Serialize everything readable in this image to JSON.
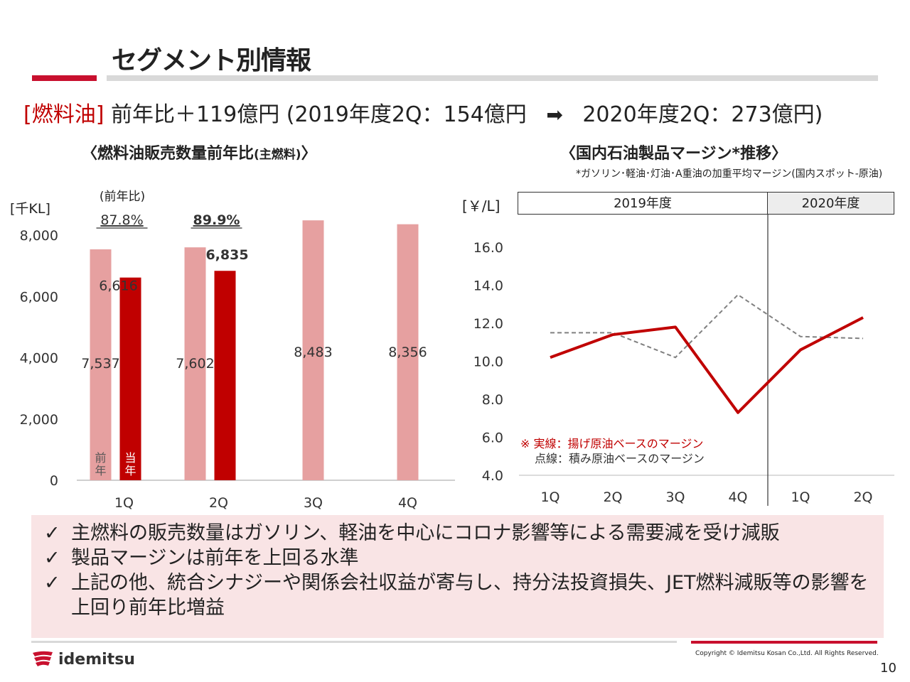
{
  "page_title": "セグメント別情報",
  "headline": {
    "segment": "[燃料油]",
    "text_before_arrow": "前年比＋119億円 (2019年度2Q：154億円",
    "arrow_symbol": "➡",
    "text_after_arrow": "2020年度2Q：273億円)"
  },
  "left_chart": {
    "title_main": "〈燃料油販売数量前年比",
    "title_small": "(主燃料)",
    "title_end": "〉"
  },
  "right_chart": {
    "title": "〈国内石油製品マージン*推移〉",
    "note": "*ガソリン･軽油･灯油･A重油の加重平均マージン(国内スポット-原油)",
    "period_2019": "2019年度",
    "period_2020": "2020年度"
  },
  "checks": [
    "主燃料の販売数量はガソリン、軽油を中心にコロナ影響等による需要減を受け減販",
    "製品マージンは前年を上回る水準",
    "上記の他、統合シナジーや関係会社収益が寄与し、持分法投資損失、JET燃料減販等の影響を上回り前年比増益"
  ],
  "check_symbol": "✓",
  "footer": {
    "logo_text": "idemitsu",
    "copyright": "Copyright © Idemitsu Kosan Co.,Ltd.  All Rights Reserved.",
    "page_number": "10"
  },
  "colors": {
    "accent_red": "#c00000",
    "prev_year_bar": "#e6a0a0",
    "curr_year_bar": "#c00000",
    "dashed_line": "#808080",
    "check_box_bg": "#f9e4e5"
  },
  "chart_data": [
    {
      "type": "bar",
      "ylabel": "[千KL]",
      "ylim": [
        0,
        8000
      ],
      "yticks": [
        0,
        2000,
        4000,
        6000,
        8000
      ],
      "ytick_labels": [
        "0",
        "2,000",
        "4,000",
        "6,000",
        "8,000"
      ],
      "categories": [
        "1Q",
        "2Q",
        "3Q",
        "4Q"
      ],
      "yoy_label": "(前年比)",
      "yoy_values": [
        "87.8%",
        "89.9%",
        null,
        null
      ],
      "series": [
        {
          "name": "前年",
          "values": [
            7537,
            7602,
            8483,
            8356
          ],
          "labels": [
            "7,537",
            "7,602",
            "8,483",
            "8,356"
          ]
        },
        {
          "name": "当年",
          "values": [
            6616,
            6835,
            null,
            null
          ],
          "labels": [
            "6,616",
            "6,835",
            null,
            null
          ]
        }
      ],
      "grid": false
    },
    {
      "type": "line",
      "ylabel": "[￥/L]",
      "ylim": [
        4.0,
        16.0
      ],
      "yticks": [
        4.0,
        6.0,
        8.0,
        10.0,
        12.0,
        14.0,
        16.0
      ],
      "ytick_labels": [
        "4.0",
        "6.0",
        "8.0",
        "10.0",
        "12.0",
        "14.0",
        "16.0"
      ],
      "categories": [
        "1Q",
        "2Q",
        "3Q",
        "4Q",
        "1Q",
        "2Q"
      ],
      "series": [
        {
          "name": "実線：揚げ原油ベースのマージン",
          "style": "solid",
          "values": [
            10.2,
            11.4,
            11.8,
            7.3,
            10.6,
            12.3
          ]
        },
        {
          "name": "点線：積み原油ベースのマージン",
          "style": "dashed",
          "values": [
            11.5,
            11.5,
            10.2,
            13.5,
            11.3,
            11.2
          ]
        }
      ],
      "legend_marker": "※",
      "legend_placement": "bottom-left",
      "grid": false
    }
  ]
}
